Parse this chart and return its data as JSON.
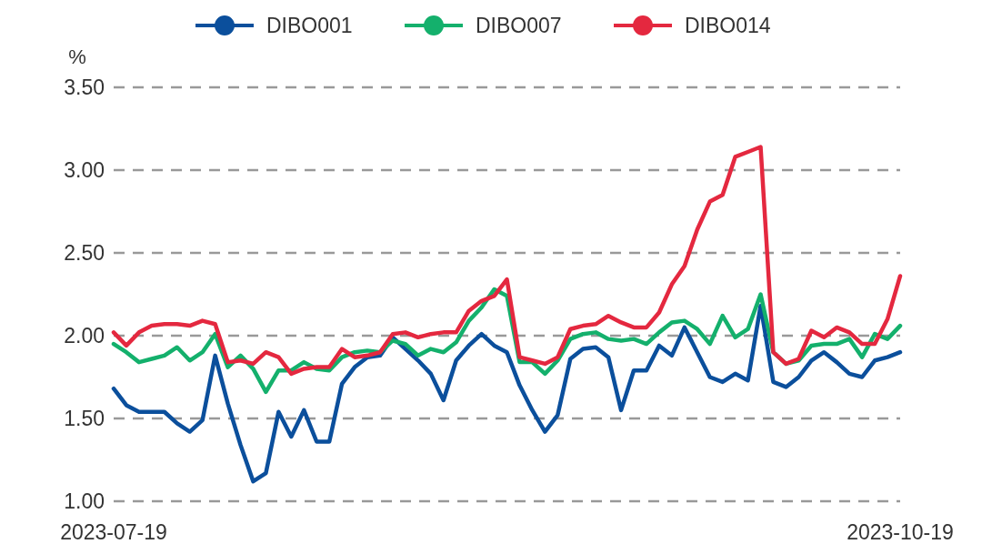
{
  "chart_data": {
    "type": "line",
    "ylabel": "%",
    "categories": [
      "2023-07-19",
      null,
      null,
      null,
      null,
      null,
      null,
      null,
      null,
      null,
      null,
      null,
      null,
      null,
      null,
      null,
      null,
      null,
      null,
      null,
      null,
      null,
      null,
      null,
      null,
      null,
      null,
      null,
      null,
      null,
      null,
      null,
      null,
      null,
      null,
      null,
      null,
      null,
      null,
      null,
      null,
      null,
      null,
      null,
      null,
      null,
      null,
      null,
      null,
      null,
      null,
      null,
      null,
      null,
      null,
      null,
      null,
      null,
      null,
      null,
      null,
      null,
      "2023-10-19"
    ],
    "series": [
      {
        "name": "DIBO001",
        "color": "#0b4f9c",
        "values": [
          1.68,
          1.58,
          1.54,
          1.54,
          1.54,
          1.47,
          1.42,
          1.49,
          1.88,
          1.59,
          1.34,
          1.12,
          1.17,
          1.54,
          1.39,
          1.55,
          1.36,
          1.36,
          1.71,
          1.81,
          1.87,
          1.88,
          1.99,
          1.92,
          1.85,
          1.77,
          1.61,
          1.85,
          1.94,
          2.01,
          1.94,
          1.9,
          1.7,
          1.55,
          1.42,
          1.52,
          1.86,
          1.92,
          1.93,
          1.87,
          1.55,
          1.79,
          1.79,
          1.94,
          1.88,
          2.05,
          1.9,
          1.75,
          1.72,
          1.77,
          1.73,
          2.18,
          1.72,
          1.69,
          1.75,
          1.85,
          1.9,
          1.84,
          1.77,
          1.75,
          1.85,
          1.87,
          1.9
        ]
      },
      {
        "name": "DIBO007",
        "color": "#14b06c",
        "values": [
          1.95,
          1.9,
          1.84,
          1.86,
          1.88,
          1.93,
          1.85,
          1.9,
          2.01,
          1.81,
          1.88,
          1.8,
          1.66,
          1.79,
          1.79,
          1.84,
          1.8,
          1.79,
          1.87,
          1.9,
          1.91,
          1.9,
          1.97,
          1.95,
          1.88,
          1.92,
          1.9,
          1.96,
          2.09,
          2.17,
          2.28,
          2.24,
          1.84,
          1.84,
          1.77,
          1.85,
          1.98,
          2.01,
          2.02,
          1.98,
          1.97,
          1.98,
          1.95,
          2.02,
          2.08,
          2.09,
          2.04,
          1.95,
          2.12,
          1.99,
          2.04,
          2.25,
          1.9,
          1.83,
          1.85,
          1.94,
          1.95,
          1.95,
          1.98,
          1.87,
          2.01,
          1.98,
          2.06
        ]
      },
      {
        "name": "DIBO014",
        "color": "#e4283f",
        "values": [
          2.02,
          1.94,
          2.02,
          2.06,
          2.07,
          2.07,
          2.06,
          2.09,
          2.07,
          1.84,
          1.85,
          1.83,
          1.9,
          1.87,
          1.77,
          1.8,
          1.81,
          1.81,
          1.92,
          1.87,
          1.88,
          1.9,
          2.01,
          2.02,
          1.99,
          2.01,
          2.02,
          2.02,
          2.15,
          2.21,
          2.24,
          2.34,
          1.87,
          1.85,
          1.83,
          1.87,
          2.04,
          2.06,
          2.07,
          2.12,
          2.08,
          2.05,
          2.05,
          2.14,
          2.31,
          2.42,
          2.64,
          2.81,
          2.85,
          3.08,
          3.11,
          3.14,
          1.9,
          1.83,
          1.86,
          2.03,
          1.99,
          2.05,
          2.02,
          1.95,
          1.95,
          2.1,
          2.36
        ]
      }
    ],
    "ylim": [
      1.0,
      3.5
    ],
    "yticks": [
      {
        "value": 1.0,
        "label": "1.00"
      },
      {
        "value": 1.5,
        "label": "1.50"
      },
      {
        "value": 2.0,
        "label": "2.00"
      },
      {
        "value": 2.5,
        "label": "2.50"
      },
      {
        "value": 3.0,
        "label": "3.00"
      },
      {
        "value": 3.5,
        "label": "3.50"
      }
    ],
    "grid": "y",
    "legend": "top",
    "marker": "none",
    "line_style": "solid"
  }
}
